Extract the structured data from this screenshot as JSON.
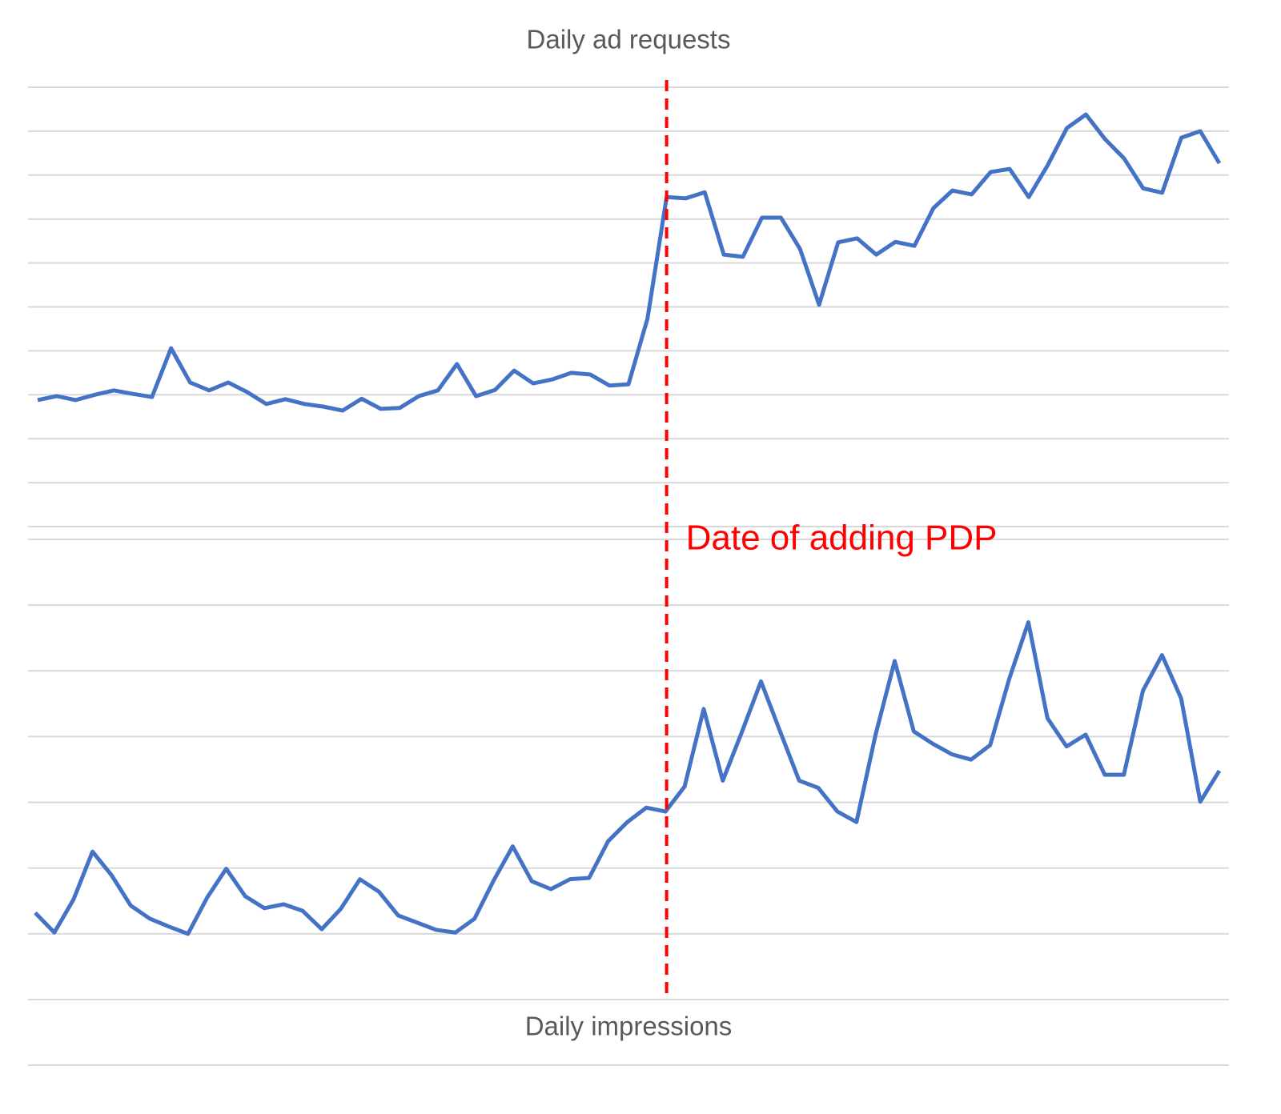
{
  "chart_data": [
    {
      "type": "line",
      "title": "Daily ad requests",
      "color": "#4472c4",
      "grid": true,
      "ylim": [
        0,
        10
      ],
      "yticks": [
        0,
        1,
        2,
        3,
        4,
        5,
        6,
        7,
        8,
        9,
        10
      ],
      "values": [
        2.88,
        2.97,
        2.88,
        3.0,
        3.1,
        3.02,
        2.95,
        4.06,
        3.28,
        3.1,
        3.28,
        3.06,
        2.79,
        2.9,
        2.79,
        2.73,
        2.64,
        2.91,
        2.68,
        2.7,
        2.97,
        3.1,
        3.7,
        2.97,
        3.11,
        3.55,
        3.26,
        3.35,
        3.5,
        3.46,
        3.21,
        3.24,
        4.74,
        7.5,
        7.47,
        7.61,
        6.19,
        6.14,
        7.03,
        7.03,
        6.32,
        5.05,
        6.47,
        6.56,
        6.19,
        6.48,
        6.39,
        7.25,
        7.65,
        7.56,
        8.07,
        8.14,
        7.5,
        8.23,
        9.07,
        9.38,
        8.82,
        8.38,
        7.7,
        7.6,
        8.85,
        9.0,
        8.27
      ]
    },
    {
      "type": "line",
      "title": "Daily impressions",
      "color": "#4472c4",
      "grid": true,
      "ylim": [
        0,
        7
      ],
      "yticks": [
        0,
        1,
        2,
        3,
        4,
        5,
        6,
        7
      ],
      "values": [
        1.32,
        1.02,
        1.52,
        2.25,
        1.89,
        1.43,
        1.23,
        1.11,
        1.0,
        1.55,
        1.99,
        1.57,
        1.39,
        1.45,
        1.35,
        1.07,
        1.38,
        1.83,
        1.64,
        1.28,
        1.17,
        1.06,
        1.02,
        1.23,
        1.81,
        2.33,
        1.8,
        1.68,
        1.83,
        1.85,
        2.41,
        2.7,
        2.92,
        2.86,
        3.24,
        4.42,
        3.33,
        4.07,
        4.84,
        4.08,
        3.33,
        3.22,
        2.86,
        2.7,
        4.03,
        5.15,
        4.08,
        3.89,
        3.73,
        3.65,
        3.87,
        4.88,
        5.74,
        4.28,
        3.85,
        4.03,
        3.42,
        3.42,
        4.7,
        5.24,
        4.58,
        3.01,
        3.48
      ]
    }
  ],
  "annotation": {
    "text": "Date of adding PDP",
    "x": 33,
    "color": "#ff0000"
  }
}
